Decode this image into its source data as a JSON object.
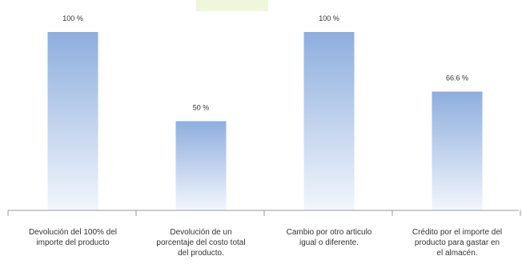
{
  "chart_data": {
    "type": "bar",
    "categories": [
      [
        "Devolución del 100% del",
        "importe del producto"
      ],
      [
        "Devolución de un",
        "porcentaje del costo total",
        "del producto."
      ],
      [
        "Cambio por otro articulo",
        "igual o diferente."
      ],
      [
        "Crédito por el importe del",
        "producto para gastar en",
        "el almacén."
      ]
    ],
    "values": [
      100,
      50,
      100,
      66.6
    ],
    "data_labels": [
      "100 %",
      "50 %",
      "100 %",
      "66.6 %"
    ],
    "ylim": [
      0,
      100
    ],
    "grid": false,
    "legend": "none",
    "colors": {
      "bar_top": "#8eaede",
      "bar_bottom": "#f2f6fc",
      "axis": "#999999",
      "text": "#333333",
      "top_accent": "#eef7dc"
    }
  }
}
